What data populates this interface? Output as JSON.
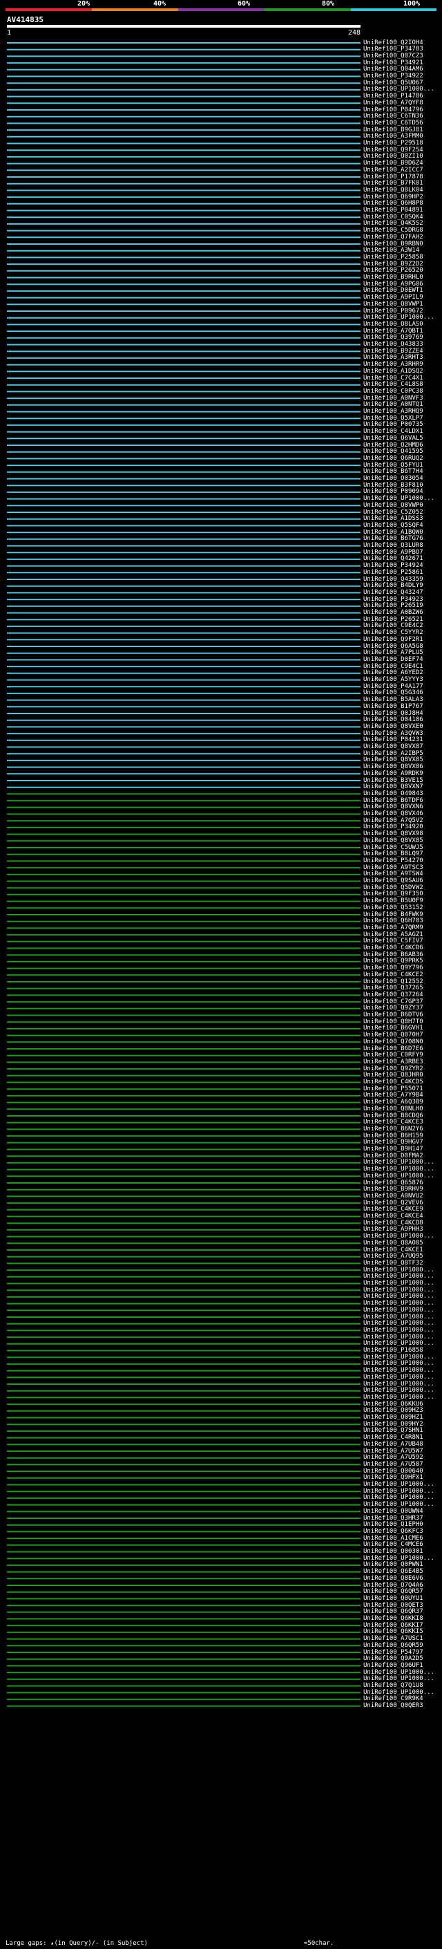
{
  "scale": {
    "ticks": [
      "20%",
      "40%",
      "60%",
      "80%",
      "100%"
    ],
    "colors": [
      "#e8222e",
      "#e77f1c",
      "#8a33a6",
      "#1e9a1e",
      "#2ac5d9"
    ]
  },
  "query": {
    "title": "AV414835",
    "start": "1",
    "end": "248"
  },
  "footer": {
    "gaps_text": "Large gaps: ▴(in Query)/- (in Subject)",
    "scale_text": "=50char."
  },
  "hits": [
    {
      "label": "UniRef100_Q2IOH4",
      "color": "#4fc7e3"
    },
    {
      "label": "UniRef100_P34783",
      "color": "#4fc7e3"
    },
    {
      "label": "UniRef100_Q07CZ3",
      "color": "#4fc7e3"
    },
    {
      "label": "UniRef100_P34921",
      "color": "#4fc7e3"
    },
    {
      "label": "UniRef100_Q04AM6",
      "color": "#4fc7e3"
    },
    {
      "label": "UniRef100_P34922",
      "color": "#4fc7e3"
    },
    {
      "label": "UniRef100_Q5U067",
      "color": "#4fc7e3"
    },
    {
      "label": "UniRef100_UP1000...",
      "color": "#4fc7e3"
    },
    {
      "label": "UniRef100_P14786",
      "color": "#4fc7e3"
    },
    {
      "label": "UniRef100_A7QYF8",
      "color": "#4fc7e3"
    },
    {
      "label": "UniRef100_P04796",
      "color": "#4fc7e3"
    },
    {
      "label": "UniRef100_C6TN36",
      "color": "#4fc7e3"
    },
    {
      "label": "UniRef100_C6TD56",
      "color": "#4fc7e3"
    },
    {
      "label": "UniRef100_B9GJ81",
      "color": "#4fc7e3"
    },
    {
      "label": "UniRef100_A3FMM0",
      "color": "#4fc7e3"
    },
    {
      "label": "UniRef100_P29518",
      "color": "#4fc7e3"
    },
    {
      "label": "UniRef100_Q9F254",
      "color": "#4fc7e3"
    },
    {
      "label": "UniRef100_Q0ZI10",
      "color": "#4fc7e3"
    },
    {
      "label": "UniRef100_B9D6Z4",
      "color": "#4fc7e3"
    },
    {
      "label": "UniRef100_A2ICC7",
      "color": "#4fc7e3"
    },
    {
      "label": "UniRef100_P17878",
      "color": "#4fc7e3"
    },
    {
      "label": "UniRef100_B7FK01",
      "color": "#4fc7e3"
    },
    {
      "label": "UniRef100_Q8LK04",
      "color": "#4fc7e3"
    },
    {
      "label": "UniRef100_Q69HP2",
      "color": "#4fc7e3"
    },
    {
      "label": "UniRef100_Q6H8P8",
      "color": "#4fc7e3"
    },
    {
      "label": "UniRef100_P04891",
      "color": "#4fc7e3"
    },
    {
      "label": "UniRef100_C0SQK4",
      "color": "#4fc7e3"
    },
    {
      "label": "UniRef100_Q4K5S2",
      "color": "#4fc7e3"
    },
    {
      "label": "UniRef100_C5DRG8",
      "color": "#4fc7e3"
    },
    {
      "label": "UniRef100_Q7FAH2",
      "color": "#4fc7e3"
    },
    {
      "label": "UniRef100_B9RBN0",
      "color": "#4fc7e3"
    },
    {
      "label": "UniRef100_A3W14",
      "color": "#4fc7e3"
    },
    {
      "label": "UniRef100_P25858",
      "color": "#4fc7e3"
    },
    {
      "label": "UniRef100_B9Z2D2",
      "color": "#4fc7e3"
    },
    {
      "label": "UniRef100_P26520",
      "color": "#4fc7e3"
    },
    {
      "label": "UniRef100_B9RHL0",
      "color": "#4fc7e3"
    },
    {
      "label": "UniRef100_A9PG06",
      "color": "#4fc7e3"
    },
    {
      "label": "UniRef100_D0EWT1",
      "color": "#4fc7e3"
    },
    {
      "label": "UniRef100_A9PIL9",
      "color": "#4fc7e3"
    },
    {
      "label": "UniRef100_Q8VWP1",
      "color": "#4fc7e3"
    },
    {
      "label": "UniRef100_P09672",
      "color": "#4fc7e3"
    },
    {
      "label": "UniRef100_UP1000...",
      "color": "#4fc7e3"
    },
    {
      "label": "UniRef100_Q8LAS0",
      "color": "#4fc7e3"
    },
    {
      "label": "UniRef100_A7QBT1",
      "color": "#4fc7e3"
    },
    {
      "label": "UniRef100_Q39769",
      "color": "#4fc7e3"
    },
    {
      "label": "UniRef100_Q43833",
      "color": "#4fc7e3"
    },
    {
      "label": "UniRef100_B9ZZE4",
      "color": "#4fc7e3"
    },
    {
      "label": "UniRef100_A3RHT3",
      "color": "#4fc7e3"
    },
    {
      "label": "UniRef100_A3RHR9",
      "color": "#4fc7e3"
    },
    {
      "label": "UniRef100_A1DSQ2",
      "color": "#4fc7e3"
    },
    {
      "label": "UniRef100_C7C4X1",
      "color": "#4fc7e3"
    },
    {
      "label": "UniRef100_C4L8S8",
      "color": "#4fc7e3"
    },
    {
      "label": "UniRef100_C0PC38",
      "color": "#4fc7e3"
    },
    {
      "label": "UniRef100_A0NVF3",
      "color": "#4fc7e3"
    },
    {
      "label": "UniRef100_A0NTQ1",
      "color": "#4fc7e3"
    },
    {
      "label": "UniRef100_A3RHQ9",
      "color": "#4fc7e3"
    },
    {
      "label": "UniRef100_Q5XLP7",
      "color": "#4fc7e3"
    },
    {
      "label": "UniRef100_P00735",
      "color": "#4fc7e3"
    },
    {
      "label": "UniRef100_C4LDX1",
      "color": "#4fc7e3"
    },
    {
      "label": "UniRef100_Q6VAL5",
      "color": "#4fc7e3"
    },
    {
      "label": "UniRef100_Q2HMD6",
      "color": "#4fc7e3"
    },
    {
      "label": "UniRef100_Q41595",
      "color": "#4fc7e3"
    },
    {
      "label": "UniRef100_Q6RUQ2",
      "color": "#4fc7e3"
    },
    {
      "label": "UniRef100_Q5FYU1",
      "color": "#4fc7e3"
    },
    {
      "label": "UniRef100_B6T7H4",
      "color": "#4fc7e3"
    },
    {
      "label": "UniRef100_O03054",
      "color": "#4fc7e3"
    },
    {
      "label": "UniRef100_B3F810",
      "color": "#4fc7e3"
    },
    {
      "label": "UniRef100_P09094",
      "color": "#4fc7e3"
    },
    {
      "label": "UniRef100_UP1000...",
      "color": "#4fc7e3"
    },
    {
      "label": "UniRef100_Q8VWP0",
      "color": "#4fc7e3"
    },
    {
      "label": "UniRef100_C5Z052",
      "color": "#4fc7e3"
    },
    {
      "label": "UniRef100_A1DSS3",
      "color": "#4fc7e3"
    },
    {
      "label": "UniRef100_Q5SQF4",
      "color": "#4fc7e3"
    },
    {
      "label": "UniRef100_A1BQW0",
      "color": "#4fc7e3"
    },
    {
      "label": "UniRef100_B6TG76",
      "color": "#4fc7e3"
    },
    {
      "label": "UniRef100_Q3LUR8",
      "color": "#4fc7e3"
    },
    {
      "label": "UniRef100_A9PBO7",
      "color": "#4fc7e3"
    },
    {
      "label": "UniRef100_Q42671",
      "color": "#4fc7e3"
    },
    {
      "label": "UniRef100_P34924",
      "color": "#4fc7e3"
    },
    {
      "label": "UniRef100_P25861",
      "color": "#4fc7e3"
    },
    {
      "label": "UniRef100_Q43359",
      "color": "#4fc7e3"
    },
    {
      "label": "UniRef100_B4DLY9",
      "color": "#4fc7e3"
    },
    {
      "label": "UniRef100_Q43247",
      "color": "#4fc7e3"
    },
    {
      "label": "UniRef100_P34923",
      "color": "#4fc7e3"
    },
    {
      "label": "UniRef100_P26519",
      "color": "#4fc7e3"
    },
    {
      "label": "UniRef100_A0BZW6",
      "color": "#4fc7e3"
    },
    {
      "label": "UniRef100_P26521",
      "color": "#4fc7e3"
    },
    {
      "label": "UniRef100_C9E4C2",
      "color": "#4fc7e3"
    },
    {
      "label": "UniRef100_C5YYR2",
      "color": "#4fc7e3"
    },
    {
      "label": "UniRef100_Q9F2R1",
      "color": "#4fc7e3"
    },
    {
      "label": "UniRef100_Q6A5G8",
      "color": "#4fc7e3"
    },
    {
      "label": "UniRef100_A7PLU5",
      "color": "#4fc7e3"
    },
    {
      "label": "UniRef100_D0EF74",
      "color": "#4fc7e3"
    },
    {
      "label": "UniRef100_C9E4C1",
      "color": "#4fc7e3"
    },
    {
      "label": "UniRef100_A6YED2",
      "color": "#4fc7e3"
    },
    {
      "label": "UniRef100_A5YYY3",
      "color": "#4fc7e3"
    },
    {
      "label": "UniRef100_P4A177",
      "color": "#4fc7e3"
    },
    {
      "label": "UniRef100_Q5G346",
      "color": "#4fc7e3"
    },
    {
      "label": "UniRef100_B5ALA3",
      "color": "#4fc7e3"
    },
    {
      "label": "UniRef100_B1P767",
      "color": "#4fc7e3"
    },
    {
      "label": "UniRef100_Q0J8H4",
      "color": "#4fc7e3"
    },
    {
      "label": "UniRef100_O04106",
      "color": "#4fc7e3"
    },
    {
      "label": "UniRef100_Q8VXE0",
      "color": "#4fc7e3"
    },
    {
      "label": "UniRef100_A3QVW3",
      "color": "#4fc7e3"
    },
    {
      "label": "UniRef100_P04231",
      "color": "#4fc7e3"
    },
    {
      "label": "UniRef100_Q8VX87",
      "color": "#4fc7e3"
    },
    {
      "label": "UniRef100_A2IBP5",
      "color": "#4fc7e3"
    },
    {
      "label": "UniRef100_Q8VX85",
      "color": "#4fc7e3"
    },
    {
      "label": "UniRef100_Q8VX86",
      "color": "#4fc7e3"
    },
    {
      "label": "UniRef100_A9RDK9",
      "color": "#4fc7e3"
    },
    {
      "label": "UniRef100_B3VE15",
      "color": "#4fc7e3"
    },
    {
      "label": "UniRef100_Q8VXN7",
      "color": "#4fc7e3"
    },
    {
      "label": "UniRef100_O49843",
      "color": "#1e9a1e"
    },
    {
      "label": "UniRef100_B6TDF6",
      "color": "#1e9a1e"
    },
    {
      "label": "UniRef100_Q8VXN6",
      "color": "#1e9a1e"
    },
    {
      "label": "UniRef100_Q8VX46",
      "color": "#1e9a1e"
    },
    {
      "label": "UniRef100_A7Q5V2",
      "color": "#1e9a1e"
    },
    {
      "label": "UniRef100_P34920",
      "color": "#1e9a1e"
    },
    {
      "label": "UniRef100_Q8VX98",
      "color": "#1e9a1e"
    },
    {
      "label": "UniRef100_Q8VX85",
      "color": "#1e9a1e"
    },
    {
      "label": "UniRef100_C5UWJ5",
      "color": "#1e9a1e"
    },
    {
      "label": "UniRef100_B8LQ97",
      "color": "#1e9a1e"
    },
    {
      "label": "UniRef100_P54270",
      "color": "#1e9a1e"
    },
    {
      "label": "UniRef100_A9TSC3",
      "color": "#1e9a1e"
    },
    {
      "label": "UniRef100_A9TSW4",
      "color": "#1e9a1e"
    },
    {
      "label": "UniRef100_Q9SAU6",
      "color": "#1e9a1e"
    },
    {
      "label": "UniRef100_Q5DVW2",
      "color": "#1e9a1e"
    },
    {
      "label": "UniRef100_Q9F350",
      "color": "#1e9a1e"
    },
    {
      "label": "UniRef100_B5U0F9",
      "color": "#1e9a1e"
    },
    {
      "label": "UniRef100_Q53152",
      "color": "#1e9a1e"
    },
    {
      "label": "UniRef100_B4FWK9",
      "color": "#1e9a1e"
    },
    {
      "label": "UniRef100_Q6H703",
      "color": "#1e9a1e"
    },
    {
      "label": "UniRef100_A7QRM9",
      "color": "#1e9a1e"
    },
    {
      "label": "UniRef100_A5AGZ1",
      "color": "#1e9a1e"
    },
    {
      "label": "UniRef100_C5FIV7",
      "color": "#1e9a1e"
    },
    {
      "label": "UniRef100_C4KCD6",
      "color": "#1e9a1e"
    },
    {
      "label": "UniRef100_B6AB36",
      "color": "#1e9a1e"
    },
    {
      "label": "UniRef100_Q9PRK5",
      "color": "#1e9a1e"
    },
    {
      "label": "UniRef100_Q9Y796",
      "color": "#1e9a1e"
    },
    {
      "label": "UniRef100_C4KCE2",
      "color": "#1e9a1e"
    },
    {
      "label": "UniRef100_Q12552",
      "color": "#1e9a1e"
    },
    {
      "label": "UniRef100_Q37265",
      "color": "#1e9a1e"
    },
    {
      "label": "UniRef100_Q37264",
      "color": "#1e9a1e"
    },
    {
      "label": "UniRef100_C7GP37",
      "color": "#1e9a1e"
    },
    {
      "label": "UniRef100_Q9ZY37",
      "color": "#1e9a1e"
    },
    {
      "label": "UniRef100_B6DTV6",
      "color": "#1e9a1e"
    },
    {
      "label": "UniRef100_Q8H7T0",
      "color": "#1e9a1e"
    },
    {
      "label": "UniRef100_B6GVH1",
      "color": "#1e9a1e"
    },
    {
      "label": "UniRef100_Q070H7",
      "color": "#1e9a1e"
    },
    {
      "label": "UniRef100_Q708N0",
      "color": "#1e9a1e"
    },
    {
      "label": "UniRef100_B6D7E6",
      "color": "#1e9a1e"
    },
    {
      "label": "UniRef100_C0RFY9",
      "color": "#1e9a1e"
    },
    {
      "label": "UniRef100_A3RBE3",
      "color": "#1e9a1e"
    },
    {
      "label": "UniRef100_Q9ZYR2",
      "color": "#1e9a1e"
    },
    {
      "label": "UniRef100_Q8JHR0",
      "color": "#1e9a1e"
    },
    {
      "label": "UniRef100_C4KCD5",
      "color": "#1e9a1e"
    },
    {
      "label": "UniRef100_P55071",
      "color": "#1e9a1e"
    },
    {
      "label": "UniRef100_A7Y9B4",
      "color": "#1e9a1e"
    },
    {
      "label": "UniRef100_A6Q3B9",
      "color": "#1e9a1e"
    },
    {
      "label": "UniRef100_Q0NLH0",
      "color": "#1e9a1e"
    },
    {
      "label": "UniRef100_B8CDQ6",
      "color": "#1e9a1e"
    },
    {
      "label": "UniRef100_C4KCE3",
      "color": "#1e9a1e"
    },
    {
      "label": "UniRef100_B6N2Y6",
      "color": "#1e9a1e"
    },
    {
      "label": "UniRef100_B6H159",
      "color": "#1e9a1e"
    },
    {
      "label": "UniRef100_Q9HGV7",
      "color": "#1e9a1e"
    },
    {
      "label": "UniRef100_B9H147",
      "color": "#1e9a1e"
    },
    {
      "label": "UniRef100_D0FMA2",
      "color": "#1e9a1e"
    },
    {
      "label": "UniRef100_UP1000...",
      "color": "#1e9a1e"
    },
    {
      "label": "UniRef100_UP1000...",
      "color": "#1e9a1e"
    },
    {
      "label": "UniRef100_UP1000...",
      "color": "#1e9a1e"
    },
    {
      "label": "UniRef100_Q65876",
      "color": "#1e9a1e"
    },
    {
      "label": "UniRef100_B9RHV9",
      "color": "#1e9a1e"
    },
    {
      "label": "UniRef100_A0NVU2",
      "color": "#1e9a1e"
    },
    {
      "label": "UniRef100_Q2VEV6",
      "color": "#1e9a1e"
    },
    {
      "label": "UniRef100_C4KCE9",
      "color": "#1e9a1e"
    },
    {
      "label": "UniRef100_C4KCE4",
      "color": "#1e9a1e"
    },
    {
      "label": "UniRef100_C4KCD8",
      "color": "#1e9a1e"
    },
    {
      "label": "UniRef100_A9PHH3",
      "color": "#1e9a1e"
    },
    {
      "label": "UniRef100_UP1000...",
      "color": "#1e9a1e"
    },
    {
      "label": "UniRef100_Q8A085",
      "color": "#1e9a1e"
    },
    {
      "label": "UniRef100_C4KCE1",
      "color": "#1e9a1e"
    },
    {
      "label": "UniRef100_A7UQ95",
      "color": "#1e9a1e"
    },
    {
      "label": "UniRef100_Q8TF32",
      "color": "#1e9a1e"
    },
    {
      "label": "UniRef100_UP1000...",
      "color": "#1e9a1e"
    },
    {
      "label": "UniRef100_UP1000...",
      "color": "#1e9a1e"
    },
    {
      "label": "UniRef100_UP1000...",
      "color": "#1e9a1e"
    },
    {
      "label": "UniRef100_UP1000...",
      "color": "#1e9a1e"
    },
    {
      "label": "UniRef100_UP1000...",
      "color": "#1e9a1e"
    },
    {
      "label": "UniRef100_UP1000...",
      "color": "#1e9a1e"
    },
    {
      "label": "UniRef100_UP1000...",
      "color": "#1e9a1e"
    },
    {
      "label": "UniRef100_UP1000...",
      "color": "#1e9a1e"
    },
    {
      "label": "UniRef100_UP1000...",
      "color": "#1e9a1e"
    },
    {
      "label": "UniRef100_UP1000...",
      "color": "#1e9a1e"
    },
    {
      "label": "UniRef100_UP1000...",
      "color": "#1e9a1e"
    },
    {
      "label": "UniRef100_UP1000...",
      "color": "#1e9a1e"
    },
    {
      "label": "UniRef100_P16858",
      "color": "#1e9a1e"
    },
    {
      "label": "UniRef100_UP1000...",
      "color": "#1e9a1e"
    },
    {
      "label": "UniRef100_UP1000...",
      "color": "#1e9a1e"
    },
    {
      "label": "UniRef100_UP1000...",
      "color": "#1e9a1e"
    },
    {
      "label": "UniRef100_UP1000...",
      "color": "#1e9a1e"
    },
    {
      "label": "UniRef100_UP1000...",
      "color": "#1e9a1e"
    },
    {
      "label": "UniRef100_UP1000...",
      "color": "#1e9a1e"
    },
    {
      "label": "UniRef100_UP1000...",
      "color": "#1e9a1e"
    },
    {
      "label": "UniRef100_Q6KKU6",
      "color": "#1e9a1e"
    },
    {
      "label": "UniRef100_Q09HZ3",
      "color": "#1e9a1e"
    },
    {
      "label": "UniRef100_Q09HZ1",
      "color": "#1e9a1e"
    },
    {
      "label": "UniRef100_Q09HY2",
      "color": "#1e9a1e"
    },
    {
      "label": "UniRef100_Q7SHN1",
      "color": "#1e9a1e"
    },
    {
      "label": "UniRef100_C4R8N1",
      "color": "#1e9a1e"
    },
    {
      "label": "UniRef100_A7UB48",
      "color": "#1e9a1e"
    },
    {
      "label": "UniRef100_A7U5W7",
      "color": "#1e9a1e"
    },
    {
      "label": "UniRef100_A7U592",
      "color": "#1e9a1e"
    },
    {
      "label": "UniRef100_A7U587",
      "color": "#1e9a1e"
    },
    {
      "label": "UniRef100_Q00640",
      "color": "#1e9a1e"
    },
    {
      "label": "UniRef100_Q9HFX1",
      "color": "#1e9a1e"
    },
    {
      "label": "UniRef100_UP1000...",
      "color": "#1e9a1e"
    },
    {
      "label": "UniRef100_UP1000...",
      "color": "#1e9a1e"
    },
    {
      "label": "UniRef100_UP1000...",
      "color": "#1e9a1e"
    },
    {
      "label": "UniRef100_UP1000...",
      "color": "#1e9a1e"
    },
    {
      "label": "UniRef100_Q0UWN4",
      "color": "#1e9a1e"
    },
    {
      "label": "UniRef100_Q3HR37",
      "color": "#1e9a1e"
    },
    {
      "label": "UniRef100_Q1EPH0",
      "color": "#1e9a1e"
    },
    {
      "label": "UniRef100_Q6KFC3",
      "color": "#1e9a1e"
    },
    {
      "label": "UniRef100_A1CME6",
      "color": "#1e9a1e"
    },
    {
      "label": "UniRef100_C4MCE6",
      "color": "#1e9a1e"
    },
    {
      "label": "UniRef100_Q00301",
      "color": "#1e9a1e"
    },
    {
      "label": "UniRef100_UP1000...",
      "color": "#1e9a1e"
    },
    {
      "label": "UniRef100_Q0PWN1",
      "color": "#1e9a1e"
    },
    {
      "label": "UniRef100_Q6E4B5",
      "color": "#1e9a1e"
    },
    {
      "label": "UniRef100_Q8E6V6",
      "color": "#1e9a1e"
    },
    {
      "label": "UniRef100_Q7Q4A6",
      "color": "#1e9a1e"
    },
    {
      "label": "UniRef100_Q6QR57",
      "color": "#1e9a1e"
    },
    {
      "label": "UniRef100_Q0UYU1",
      "color": "#1e9a1e"
    },
    {
      "label": "UniRef100_Q0QET3",
      "color": "#1e9a1e"
    },
    {
      "label": "UniRef100_Q6QR37",
      "color": "#1e9a1e"
    },
    {
      "label": "UniRef100_Q6KKI8",
      "color": "#1e9a1e"
    },
    {
      "label": "UniRef100_Q6KKI7",
      "color": "#1e9a1e"
    },
    {
      "label": "UniRef100_Q6KKI5",
      "color": "#1e9a1e"
    },
    {
      "label": "UniRef100_A7USC1",
      "color": "#1e9a1e"
    },
    {
      "label": "UniRef100_Q6QR59",
      "color": "#1e9a1e"
    },
    {
      "label": "UniRef100_P54797",
      "color": "#1e9a1e"
    },
    {
      "label": "UniRef100_Q9A2D5",
      "color": "#1e9a1e"
    },
    {
      "label": "UniRef100_Q96UF1",
      "color": "#1e9a1e"
    },
    {
      "label": "UniRef100_UP1000...",
      "color": "#1e9a1e"
    },
    {
      "label": "UniRef100_UP1000...",
      "color": "#1e9a1e"
    },
    {
      "label": "UniRef100_Q7Q1U8",
      "color": "#1e9a1e"
    },
    {
      "label": "UniRef100_UP1000...",
      "color": "#1e9a1e"
    },
    {
      "label": "UniRef100_C9R9K4",
      "color": "#1e9a1e"
    },
    {
      "label": "UniRef100_Q0QER3",
      "color": "#1e9a1e"
    }
  ]
}
